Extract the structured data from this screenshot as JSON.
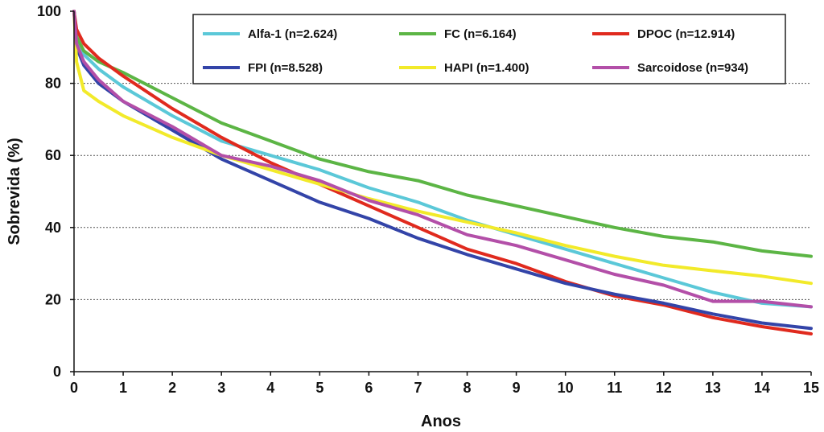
{
  "chart_data": {
    "type": "line",
    "xlabel": "Anos",
    "ylabel": "Sobrevida (%)",
    "xlim": [
      0,
      15
    ],
    "ylim": [
      0,
      100
    ],
    "x_ticks": [
      "0",
      "1",
      "2",
      "3",
      "4",
      "5",
      "6",
      "7",
      "8",
      "9",
      "10",
      "11",
      "12",
      "13",
      "14",
      "15"
    ],
    "y_ticks": [
      "0",
      "20",
      "40",
      "60",
      "80",
      "100"
    ],
    "grid": "horizontal dotted at 20, 40, 60, 80",
    "legend": "top-right",
    "series": [
      {
        "name": "Alfa-1 (n=2.624)",
        "color": "#5bc8d8",
        "x": [
          0,
          0.05,
          0.2,
          0.5,
          1,
          2,
          3,
          4,
          5,
          6,
          7,
          8,
          9,
          10,
          11,
          12,
          13,
          14,
          15
        ],
        "y": [
          100,
          92,
          88,
          84,
          79,
          71,
          64,
          60,
          56,
          51,
          47,
          42,
          38,
          34,
          30,
          26,
          22,
          19,
          18
        ]
      },
      {
        "name": "FC (n=6.164)",
        "color": "#5cb545",
        "x": [
          0,
          0.05,
          0.2,
          0.5,
          1,
          2,
          3,
          4,
          5,
          6,
          7,
          8,
          9,
          10,
          11,
          12,
          13,
          14,
          15
        ],
        "y": [
          100,
          93,
          89,
          86,
          83,
          76,
          69,
          64,
          59,
          55.5,
          53,
          49,
          46,
          43,
          40,
          37.5,
          36,
          33.5,
          32
        ]
      },
      {
        "name": "DPOC (n=12.914)",
        "color": "#e02a1e",
        "x": [
          0,
          0.05,
          0.2,
          0.5,
          1,
          2,
          3,
          4,
          5,
          6,
          7,
          8,
          9,
          10,
          11,
          12,
          13,
          14,
          15
        ],
        "y": [
          100,
          95,
          91,
          87,
          82,
          73,
          65,
          58,
          52,
          46,
          40,
          34,
          30,
          25,
          21,
          18.5,
          15,
          12.5,
          10.5
        ]
      },
      {
        "name": "FPI (n=8.528)",
        "color": "#3344a8",
        "x": [
          0,
          0.05,
          0.2,
          0.5,
          1,
          2,
          3,
          4,
          5,
          6,
          7,
          8,
          9,
          10,
          11,
          12,
          13,
          14,
          15
        ],
        "y": [
          100,
          90,
          85,
          80,
          75,
          67,
          59,
          53,
          47,
          42.5,
          37,
          32.5,
          28.5,
          24.5,
          21.5,
          19,
          16,
          13.5,
          12
        ]
      },
      {
        "name": "HAPI (n=1.400)",
        "color": "#f2ea2a",
        "x": [
          0,
          0.05,
          0.2,
          0.5,
          1,
          2,
          3,
          4,
          5,
          6,
          7,
          8,
          9,
          10,
          11,
          12,
          13,
          14,
          15
        ],
        "y": [
          100,
          86,
          78,
          75,
          71,
          65,
          60,
          56,
          52,
          48,
          44.5,
          41.5,
          38.5,
          35,
          32,
          29.5,
          28,
          26.5,
          24.5
        ]
      },
      {
        "name": "Sarcoidose (n=934)",
        "color": "#b34fa8",
        "x": [
          0,
          0.05,
          0.2,
          0.5,
          1,
          2,
          3,
          4,
          5,
          6,
          7,
          8,
          9,
          10,
          11,
          12,
          13,
          14,
          15
        ],
        "y": [
          100,
          91,
          86,
          81,
          75,
          68,
          60,
          57,
          53,
          47.5,
          43.5,
          38,
          35,
          31,
          27,
          24,
          19.5,
          19.5,
          18
        ]
      }
    ]
  }
}
